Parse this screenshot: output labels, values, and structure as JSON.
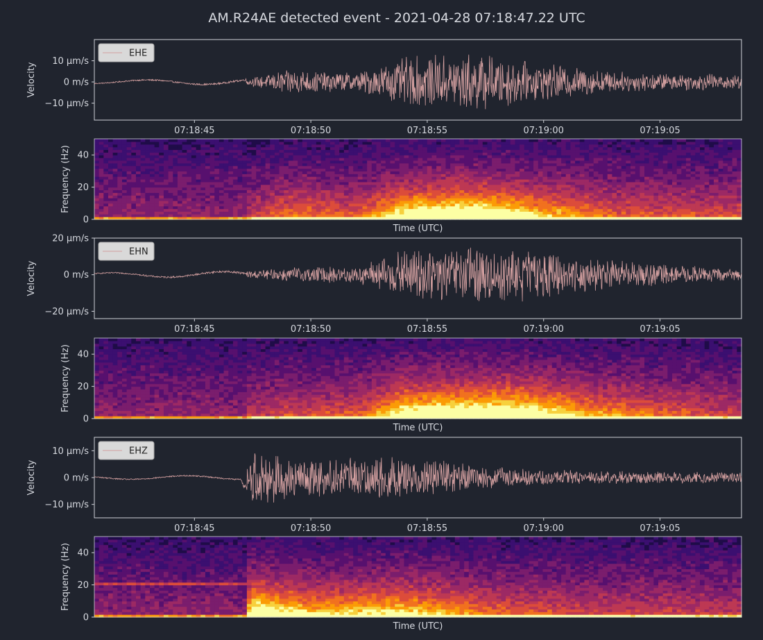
{
  "title": "AM.R24AE detected event - 2021-04-28 07:18:47.22 UTC",
  "colors": {
    "background": "#20242e",
    "axis": "#cfd2d8",
    "trace": "#d4a0a0",
    "text": "#d7dae0",
    "legend_bg": "#d9d9d9",
    "legend_text": "#222222"
  },
  "spectrogram_colormap": "inferno",
  "chart_data": [
    {
      "type": "line",
      "panel": "waveform",
      "channel": "EHE",
      "legend": "EHE",
      "legend_position": "top-left",
      "ylabel": "Velocity",
      "x_range": [
        "07:18:40.7",
        "07:19:08.5"
      ],
      "ylim": [
        -18,
        20
      ],
      "yticks": [
        10,
        0,
        -10
      ],
      "ytick_labels": [
        "10 µm/s",
        "0 m/s",
        "−10 µm/s"
      ],
      "xticks": [
        "07:18:45",
        "07:18:50",
        "07:18:55",
        "07:19:00",
        "07:19:05"
      ],
      "onset": "07:18:47.22",
      "envelope": {
        "times": [
          "07:18:40.7",
          "07:18:47.2",
          "07:18:49.0",
          "07:18:52.0",
          "07:18:54.0",
          "07:18:57.0",
          "07:19:00.0",
          "07:19:03.0",
          "07:19:06.0",
          "07:19:08.5"
        ],
        "amplitude": [
          0.8,
          1.5,
          6.0,
          4.5,
          12.0,
          14.0,
          9.0,
          5.0,
          4.0,
          4.0
        ]
      }
    },
    {
      "type": "heatmap",
      "panel": "spectrogram",
      "channel": "EHE",
      "ylabel": "Frequency (Hz)",
      "xlabel": "Time (UTC)",
      "ylim": [
        0,
        50
      ],
      "yticks": [
        0,
        20,
        40
      ]
    },
    {
      "type": "line",
      "panel": "waveform",
      "channel": "EHN",
      "legend": "EHN",
      "legend_position": "top-left",
      "ylabel": "Velocity",
      "x_range": [
        "07:18:40.7",
        "07:19:08.5"
      ],
      "ylim": [
        -24,
        20
      ],
      "yticks": [
        20,
        0,
        -20
      ],
      "ytick_labels": [
        "20 µm/s",
        "0 m/s",
        "−20 µm/s"
      ],
      "xticks": [
        "07:18:45",
        "07:18:50",
        "07:18:55",
        "07:19:00",
        "07:19:05"
      ],
      "onset": "07:18:47.22",
      "envelope": {
        "times": [
          "07:18:40.7",
          "07:18:47.2",
          "07:18:49.0",
          "07:18:52.0",
          "07:18:54.0",
          "07:18:57.0",
          "07:18:59.0",
          "07:19:02.0",
          "07:19:05.0",
          "07:19:08.5"
        ],
        "amplitude": [
          1.0,
          2.0,
          4.0,
          5.0,
          14.0,
          16.0,
          16.0,
          9.0,
          6.0,
          3.0
        ]
      }
    },
    {
      "type": "heatmap",
      "panel": "spectrogram",
      "channel": "EHN",
      "ylabel": "Frequency (Hz)",
      "xlabel": "Time (UTC)",
      "ylim": [
        0,
        50
      ],
      "yticks": [
        0,
        20,
        40
      ]
    },
    {
      "type": "line",
      "panel": "waveform",
      "channel": "EHZ",
      "legend": "EHZ",
      "legend_position": "top-left",
      "ylabel": "Velocity",
      "x_range": [
        "07:18:40.7",
        "07:19:08.5"
      ],
      "ylim": [
        -15,
        15
      ],
      "yticks": [
        10,
        0,
        -10
      ],
      "ytick_labels": [
        "10 µm/s",
        "0 m/s",
        "−10 µm/s"
      ],
      "xticks": [
        "07:18:45",
        "07:18:50",
        "07:18:55",
        "07:19:00",
        "07:19:05"
      ],
      "onset": "07:18:47.22",
      "envelope": {
        "times": [
          "07:18:40.7",
          "07:18:47.0",
          "07:18:47.5",
          "07:18:50.0",
          "07:18:54.0",
          "07:18:58.0",
          "07:19:02.0",
          "07:19:08.5"
        ],
        "amplitude": [
          0.7,
          0.8,
          11.0,
          7.0,
          8.0,
          4.0,
          2.5,
          2.0
        ]
      }
    },
    {
      "type": "heatmap",
      "panel": "spectrogram",
      "channel": "EHZ",
      "ylabel": "Frequency (Hz)",
      "xlabel": "Time (UTC)",
      "ylim": [
        0,
        50
      ],
      "yticks": [
        0,
        20,
        40
      ]
    }
  ]
}
